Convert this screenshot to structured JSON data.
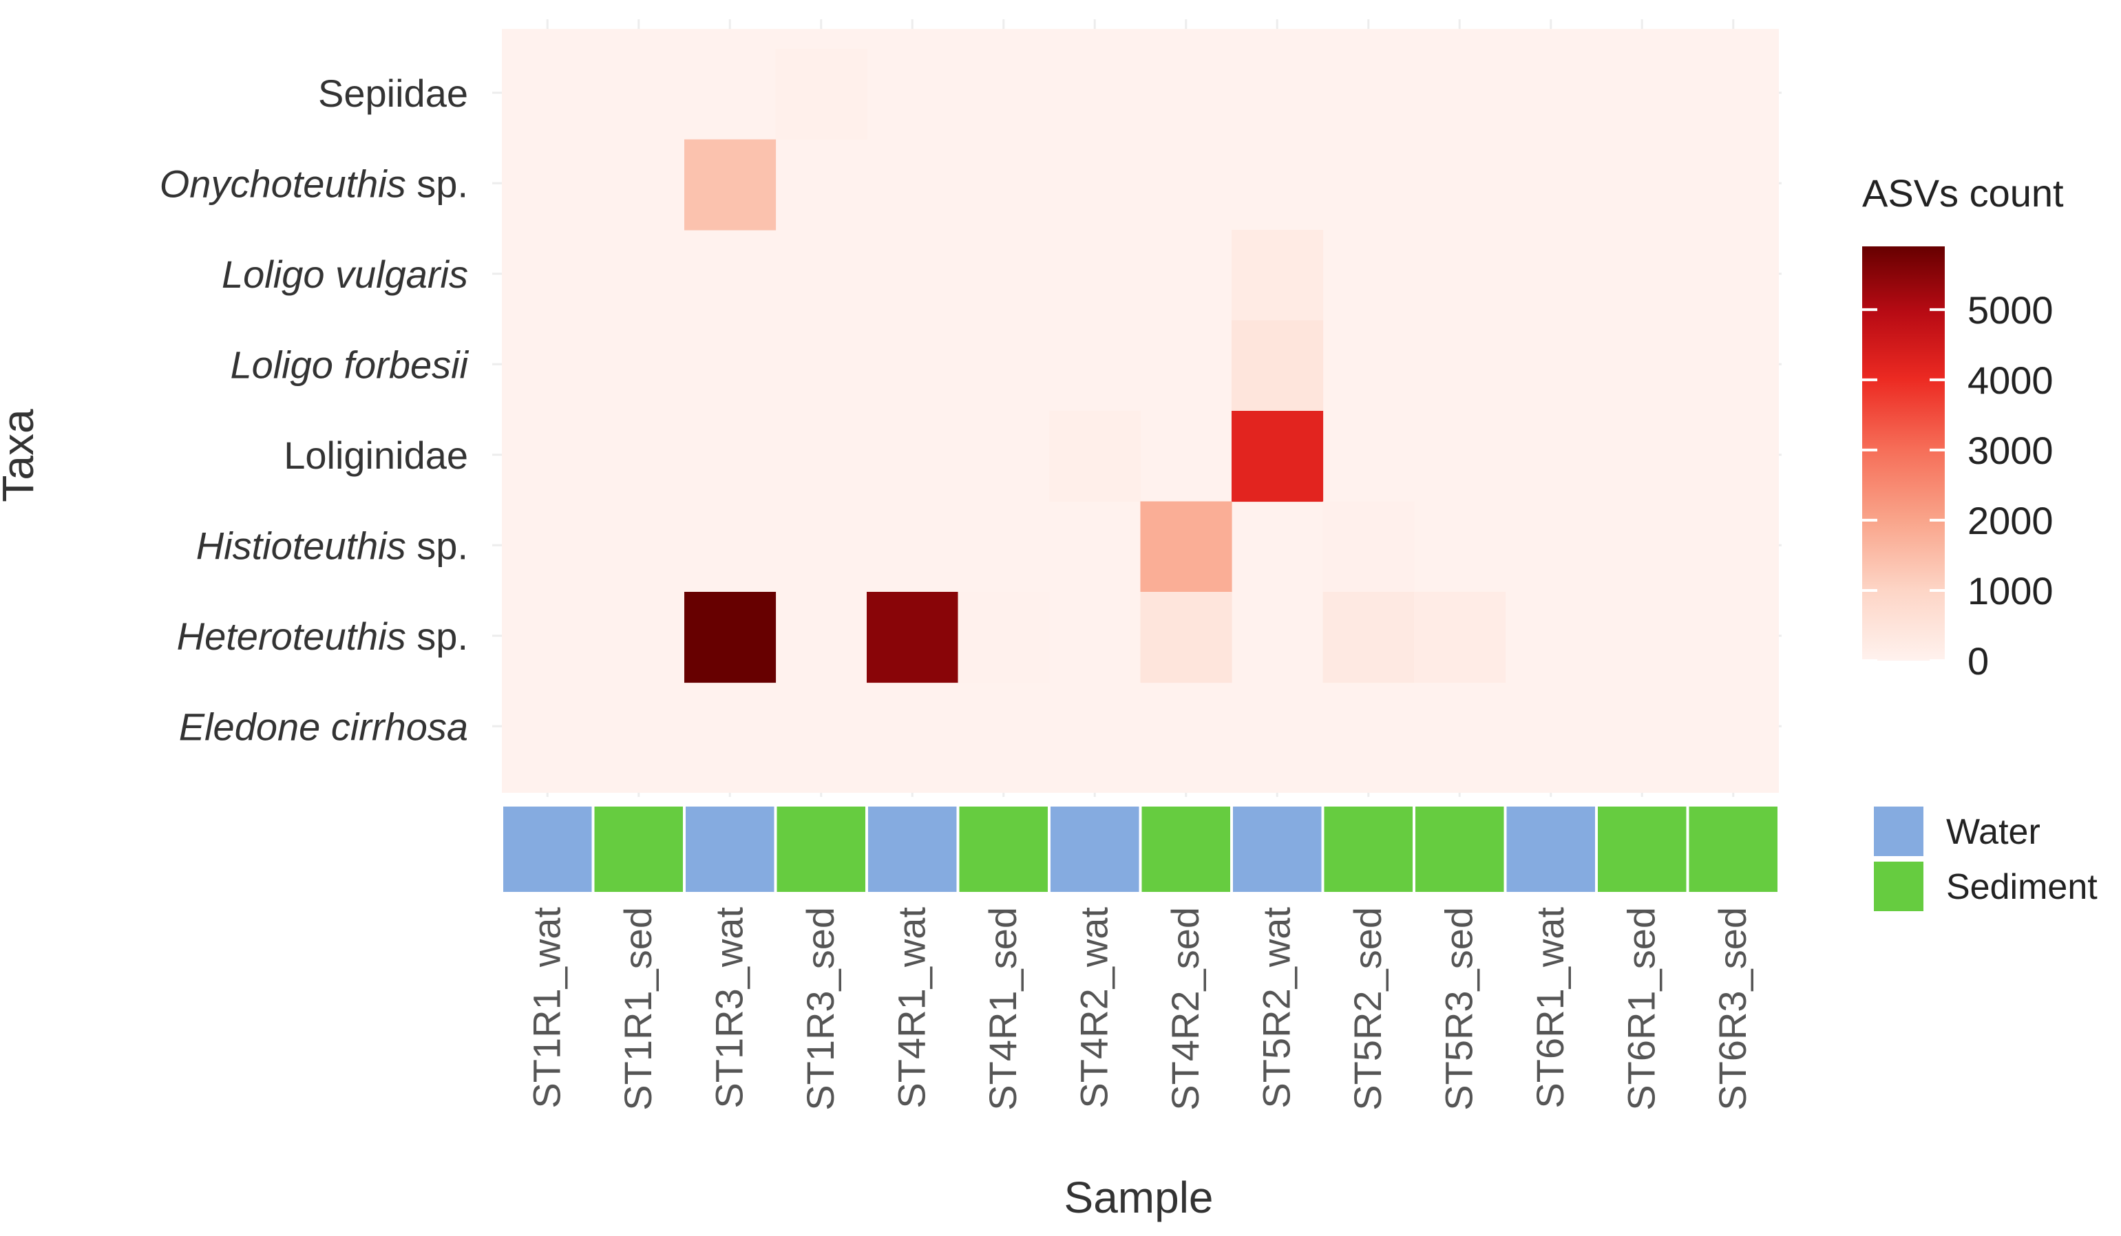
{
  "chart_data": {
    "type": "heatmap",
    "xlabel": "Sample",
    "ylabel": "Taxa",
    "samples": [
      "ST1R1_wat",
      "ST1R1_sed",
      "ST1R3_wat",
      "ST1R3_sed",
      "ST4R1_wat",
      "ST4R1_sed",
      "ST4R2_wat",
      "ST4R2_sed",
      "ST5R2_wat",
      "ST5R2_sed",
      "ST5R3_sed",
      "ST6R1_wat",
      "ST6R1_sed",
      "ST6R3_sed"
    ],
    "sample_types": [
      "Water",
      "Sediment",
      "Water",
      "Sediment",
      "Water",
      "Sediment",
      "Water",
      "Sediment",
      "Water",
      "Sediment",
      "Sediment",
      "Water",
      "Sediment",
      "Sediment"
    ],
    "taxa": [
      {
        "pre": "",
        "italic": "",
        "plain": "Sepiidae"
      },
      {
        "pre": "",
        "italic": "Onychoteuthis",
        "plain": " sp."
      },
      {
        "pre": "",
        "italic": "Loligo vulgaris",
        "plain": ""
      },
      {
        "pre": "",
        "italic": "Loligo forbesii",
        "plain": ""
      },
      {
        "pre": "",
        "italic": "",
        "plain": "Loliginidae"
      },
      {
        "pre": "",
        "italic": "Histioteuthis",
        "plain": " sp."
      },
      {
        "pre": "",
        "italic": "Heteroteuthis",
        "plain": " sp."
      },
      {
        "pre": "",
        "italic": "Eledone cirrhosa",
        "plain": ""
      }
    ],
    "values": [
      [
        0,
        0,
        0,
        80,
        0,
        0,
        0,
        0,
        0,
        0,
        0,
        0,
        0,
        0
      ],
      [
        0,
        0,
        1400,
        0,
        0,
        0,
        0,
        0,
        0,
        0,
        0,
        0,
        0,
        0
      ],
      [
        0,
        0,
        0,
        0,
        0,
        0,
        0,
        0,
        250,
        0,
        0,
        0,
        0,
        0
      ],
      [
        0,
        0,
        0,
        0,
        0,
        0,
        0,
        0,
        450,
        0,
        0,
        0,
        0,
        0
      ],
      [
        0,
        0,
        0,
        0,
        0,
        0,
        100,
        0,
        4200,
        0,
        0,
        0,
        0,
        0
      ],
      [
        0,
        0,
        0,
        0,
        0,
        0,
        0,
        1800,
        0,
        60,
        0,
        0,
        0,
        0
      ],
      [
        0,
        0,
        5900,
        0,
        5500,
        30,
        0,
        450,
        0,
        300,
        200,
        0,
        0,
        0
      ],
      [
        0,
        0,
        0,
        0,
        0,
        0,
        0,
        0,
        0,
        0,
        0,
        0,
        0,
        0
      ]
    ],
    "color_scale": {
      "title": "ASVs count",
      "min": 0,
      "max": 5900,
      "ticks": [
        0,
        1000,
        2000,
        3000,
        4000,
        5000
      ],
      "low": "#fff2ee",
      "high": "#670000"
    },
    "legend": [
      {
        "label": "Water",
        "color": "#85abe0"
      },
      {
        "label": "Sediment",
        "color": "#66cc40"
      }
    ],
    "colors": {
      "panel_bg": "#fff2ee",
      "grid": "#ededed",
      "label": "#333333",
      "sample_label": "#555555",
      "sample_accent": "#6aaee0"
    }
  }
}
